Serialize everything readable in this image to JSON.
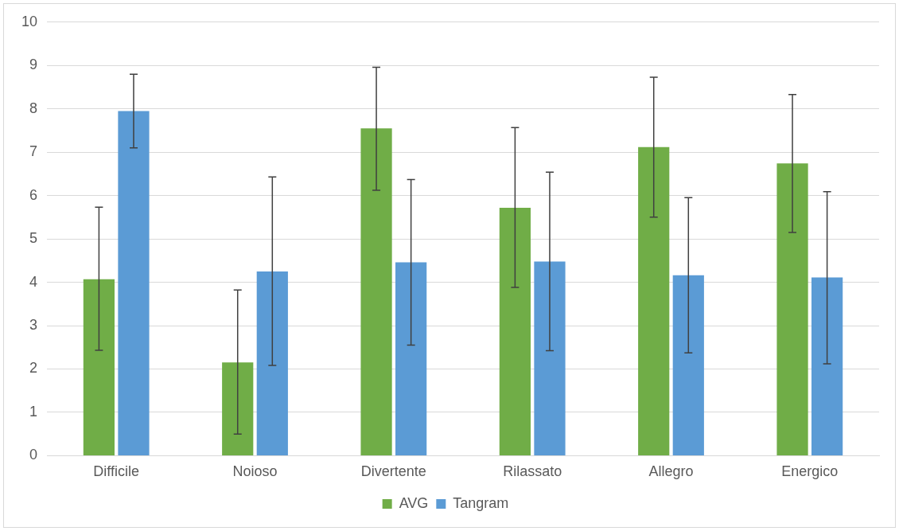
{
  "chart_data": {
    "type": "bar",
    "categories": [
      "Difficile",
      "Noioso",
      "Divertente",
      "Rilassato",
      "Allegro",
      "Energico"
    ],
    "series": [
      {
        "name": "AVG",
        "color": "#70ad47",
        "values": [
          4.07,
          2.15,
          7.55,
          5.72,
          7.12,
          6.74
        ],
        "errors": [
          [
            2.43,
            5.73
          ],
          [
            0.5,
            3.82
          ],
          [
            6.12,
            8.96
          ],
          [
            3.88,
            7.57
          ],
          [
            5.5,
            8.73
          ],
          [
            5.15,
            8.33
          ]
        ]
      },
      {
        "name": "Tangram",
        "color": "#5b9bd5",
        "values": [
          7.95,
          4.25,
          4.46,
          4.48,
          4.16,
          4.11
        ],
        "errors": [
          [
            7.1,
            8.8
          ],
          [
            2.08,
            6.43
          ],
          [
            2.55,
            6.37
          ],
          [
            2.42,
            6.54
          ],
          [
            2.37,
            5.95
          ],
          [
            2.12,
            6.09
          ]
        ]
      }
    ],
    "ylim": [
      0,
      10
    ],
    "yticks": [
      0,
      1,
      2,
      3,
      4,
      5,
      6,
      7,
      8,
      9,
      10
    ],
    "grid": "y",
    "legend": "bottom"
  }
}
